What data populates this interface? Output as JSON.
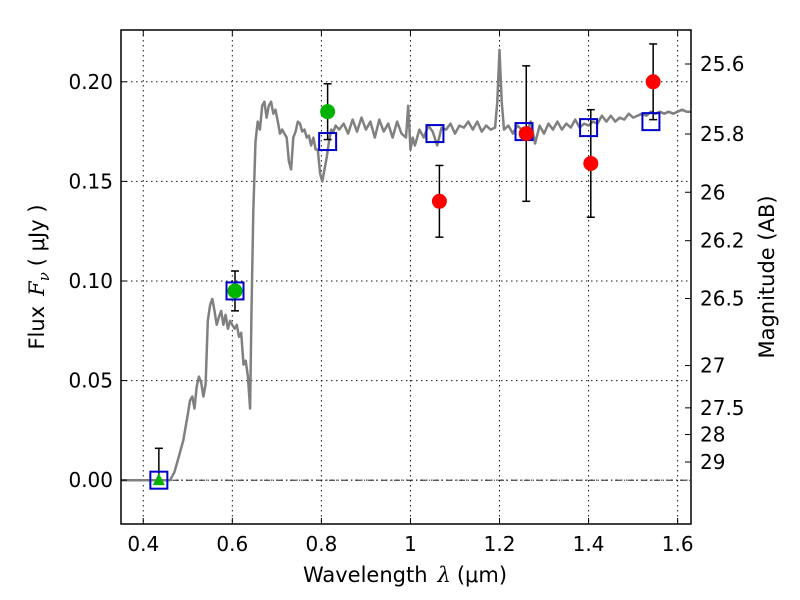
{
  "chart_data": {
    "type": "scatter",
    "title": "",
    "xlabel": "Wavelength",
    "xlabel_symbol": "λ",
    "xlabel_unit": "(μm)",
    "ylabel": "Flux",
    "ylabel_symbol": "F",
    "ylabel_subscript": "ν",
    "ylabel_unit": "( μJy )",
    "y2label": "Magnitude (AB)",
    "xlim": [
      0.35,
      1.63
    ],
    "ylim": [
      -0.022,
      0.226
    ],
    "grid": true,
    "legend": "none",
    "x_ticks": [
      {
        "value": 0.4,
        "label": "0.4"
      },
      {
        "value": 0.6,
        "label": "0.6"
      },
      {
        "value": 0.8,
        "label": "0.8"
      },
      {
        "value": 1.0,
        "label": "1"
      },
      {
        "value": 1.2,
        "label": "1.2"
      },
      {
        "value": 1.4,
        "label": "1.4"
      },
      {
        "value": 1.6,
        "label": "1.6"
      }
    ],
    "y_ticks": [
      {
        "value": 0.0,
        "label": "0.00"
      },
      {
        "value": 0.05,
        "label": "0.05"
      },
      {
        "value": 0.1,
        "label": "0.10"
      },
      {
        "value": 0.15,
        "label": "0.15"
      },
      {
        "value": 0.2,
        "label": "0.20"
      }
    ],
    "magnitude_ticks": [
      {
        "mag": 25.6,
        "label": "25.6"
      },
      {
        "mag": 25.8,
        "label": "25.8"
      },
      {
        "mag": 26.0,
        "label": "26"
      },
      {
        "mag": 26.2,
        "label": "26.2"
      },
      {
        "mag": 26.5,
        "label": "26.5"
      },
      {
        "mag": 27.0,
        "label": "27"
      },
      {
        "mag": 27.5,
        "label": "27.5"
      },
      {
        "mag": 28.0,
        "label": "28"
      },
      {
        "mag": 29.0,
        "label": "29"
      }
    ],
    "zero_line": {
      "y": 0.0,
      "color": "#000000",
      "style": "dashdot"
    },
    "series": [
      {
        "name": "model spectrum",
        "kind": "line",
        "color": "#808080",
        "points": [
          [
            0.35,
            0.0
          ],
          [
            0.46,
            0.0
          ],
          [
            0.47,
            0.004
          ],
          [
            0.48,
            0.012
          ],
          [
            0.49,
            0.02
          ],
          [
            0.5,
            0.033
          ],
          [
            0.505,
            0.04
          ],
          [
            0.51,
            0.042
          ],
          [
            0.515,
            0.036
          ],
          [
            0.52,
            0.047
          ],
          [
            0.525,
            0.052
          ],
          [
            0.53,
            0.049
          ],
          [
            0.535,
            0.042
          ],
          [
            0.54,
            0.048
          ],
          [
            0.545,
            0.08
          ],
          [
            0.55,
            0.088
          ],
          [
            0.555,
            0.091
          ],
          [
            0.56,
            0.085
          ],
          [
            0.565,
            0.078
          ],
          [
            0.57,
            0.082
          ],
          [
            0.575,
            0.085
          ],
          [
            0.58,
            0.078
          ],
          [
            0.585,
            0.083
          ],
          [
            0.59,
            0.076
          ],
          [
            0.595,
            0.08
          ],
          [
            0.6,
            0.078
          ],
          [
            0.605,
            0.076
          ],
          [
            0.61,
            0.078
          ],
          [
            0.615,
            0.072
          ],
          [
            0.62,
            0.074
          ],
          [
            0.625,
            0.058
          ],
          [
            0.63,
            0.06
          ],
          [
            0.635,
            0.052
          ],
          [
            0.64,
            0.036
          ],
          [
            0.643,
            0.085
          ],
          [
            0.647,
            0.135
          ],
          [
            0.652,
            0.17
          ],
          [
            0.657,
            0.18
          ],
          [
            0.662,
            0.176
          ],
          [
            0.667,
            0.188
          ],
          [
            0.672,
            0.19
          ],
          [
            0.677,
            0.182
          ],
          [
            0.682,
            0.188
          ],
          [
            0.687,
            0.19
          ],
          [
            0.692,
            0.184
          ],
          [
            0.697,
            0.186
          ],
          [
            0.702,
            0.18
          ],
          [
            0.707,
            0.174
          ],
          [
            0.712,
            0.176
          ],
          [
            0.717,
            0.174
          ],
          [
            0.722,
            0.172
          ],
          [
            0.727,
            0.16
          ],
          [
            0.732,
            0.156
          ],
          [
            0.737,
            0.172
          ],
          [
            0.742,
            0.175
          ],
          [
            0.747,
            0.18
          ],
          [
            0.752,
            0.179
          ],
          [
            0.757,
            0.175
          ],
          [
            0.762,
            0.176
          ],
          [
            0.767,
            0.172
          ],
          [
            0.772,
            0.173
          ],
          [
            0.777,
            0.168
          ],
          [
            0.782,
            0.172
          ],
          [
            0.787,
            0.166
          ],
          [
            0.792,
            0.166
          ],
          [
            0.797,
            0.154
          ],
          [
            0.802,
            0.15
          ],
          [
            0.807,
            0.156
          ],
          [
            0.812,
            0.162
          ],
          [
            0.817,
            0.17
          ],
          [
            0.822,
            0.176
          ],
          [
            0.827,
            0.175
          ],
          [
            0.832,
            0.178
          ],
          [
            0.84,
            0.176
          ],
          [
            0.85,
            0.179
          ],
          [
            0.86,
            0.174
          ],
          [
            0.87,
            0.181
          ],
          [
            0.88,
            0.175
          ],
          [
            0.89,
            0.182
          ],
          [
            0.9,
            0.176
          ],
          [
            0.91,
            0.18
          ],
          [
            0.92,
            0.172
          ],
          [
            0.93,
            0.181
          ],
          [
            0.94,
            0.175
          ],
          [
            0.95,
            0.179
          ],
          [
            0.96,
            0.172
          ],
          [
            0.97,
            0.18
          ],
          [
            0.98,
            0.174
          ],
          [
            0.99,
            0.172
          ],
          [
            0.995,
            0.188
          ],
          [
            1.0,
            0.166
          ],
          [
            1.005,
            0.172
          ],
          [
            1.01,
            0.168
          ],
          [
            1.02,
            0.176
          ],
          [
            1.03,
            0.172
          ],
          [
            1.04,
            0.178
          ],
          [
            1.05,
            0.175
          ],
          [
            1.06,
            0.168
          ],
          [
            1.07,
            0.177
          ],
          [
            1.08,
            0.176
          ],
          [
            1.09,
            0.179
          ],
          [
            1.1,
            0.174
          ],
          [
            1.11,
            0.178
          ],
          [
            1.12,
            0.177
          ],
          [
            1.13,
            0.18
          ],
          [
            1.14,
            0.176
          ],
          [
            1.15,
            0.18
          ],
          [
            1.16,
            0.175
          ],
          [
            1.17,
            0.178
          ],
          [
            1.18,
            0.176
          ],
          [
            1.19,
            0.177
          ],
          [
            1.195,
            0.19
          ],
          [
            1.2,
            0.216
          ],
          [
            1.205,
            0.19
          ],
          [
            1.21,
            0.176
          ],
          [
            1.22,
            0.178
          ],
          [
            1.23,
            0.174
          ],
          [
            1.24,
            0.178
          ],
          [
            1.25,
            0.176
          ],
          [
            1.26,
            0.174
          ],
          [
            1.27,
            0.18
          ],
          [
            1.28,
            0.169
          ],
          [
            1.29,
            0.178
          ],
          [
            1.3,
            0.174
          ],
          [
            1.31,
            0.179
          ],
          [
            1.32,
            0.176
          ],
          [
            1.33,
            0.18
          ],
          [
            1.34,
            0.176
          ],
          [
            1.35,
            0.179
          ],
          [
            1.36,
            0.177
          ],
          [
            1.37,
            0.181
          ],
          [
            1.38,
            0.177
          ],
          [
            1.39,
            0.179
          ],
          [
            1.4,
            0.178
          ],
          [
            1.41,
            0.18
          ],
          [
            1.42,
            0.179
          ],
          [
            1.43,
            0.183
          ],
          [
            1.44,
            0.18
          ],
          [
            1.45,
            0.183
          ],
          [
            1.46,
            0.18
          ],
          [
            1.47,
            0.182
          ],
          [
            1.48,
            0.181
          ],
          [
            1.49,
            0.184
          ],
          [
            1.5,
            0.182
          ],
          [
            1.51,
            0.183
          ],
          [
            1.52,
            0.184
          ],
          [
            1.53,
            0.183
          ],
          [
            1.54,
            0.185
          ],
          [
            1.55,
            0.184
          ],
          [
            1.56,
            0.185
          ],
          [
            1.57,
            0.184
          ],
          [
            1.58,
            0.185
          ],
          [
            1.59,
            0.184
          ],
          [
            1.6,
            0.185
          ],
          [
            1.61,
            0.186
          ],
          [
            1.62,
            0.185
          ],
          [
            1.63,
            0.185
          ]
        ]
      },
      {
        "name": "model band fluxes",
        "kind": "open-square",
        "color": "#0000cc",
        "points": [
          {
            "x": 0.435,
            "y": 0.0
          },
          {
            "x": 0.606,
            "y": 0.095
          },
          {
            "x": 0.814,
            "y": 0.17
          },
          {
            "x": 1.055,
            "y": 0.174
          },
          {
            "x": 1.255,
            "y": 0.175
          },
          {
            "x": 1.4,
            "y": 0.177
          },
          {
            "x": 1.54,
            "y": 0.18
          }
        ]
      },
      {
        "name": "observed (green)",
        "kind": "filled-circle",
        "color": "#00b300",
        "points": [
          {
            "x": 0.606,
            "y": 0.095,
            "err": 0.01
          },
          {
            "x": 0.814,
            "y": 0.185,
            "err": 0.014
          }
        ]
      },
      {
        "name": "upper limit (green triangle)",
        "kind": "triangle",
        "color": "#00b300",
        "points": [
          {
            "x": 0.435,
            "y": 0.0,
            "err_up": 0.016,
            "err_down": 0.0
          }
        ]
      },
      {
        "name": "observed (red)",
        "kind": "filled-circle",
        "color": "#ff0000",
        "points": [
          {
            "x": 1.065,
            "y": 0.14,
            "err": 0.018
          },
          {
            "x": 1.26,
            "y": 0.174,
            "err": 0.034
          },
          {
            "x": 1.405,
            "y": 0.159,
            "err": 0.027
          },
          {
            "x": 1.545,
            "y": 0.2,
            "err": 0.019
          }
        ]
      }
    ]
  }
}
